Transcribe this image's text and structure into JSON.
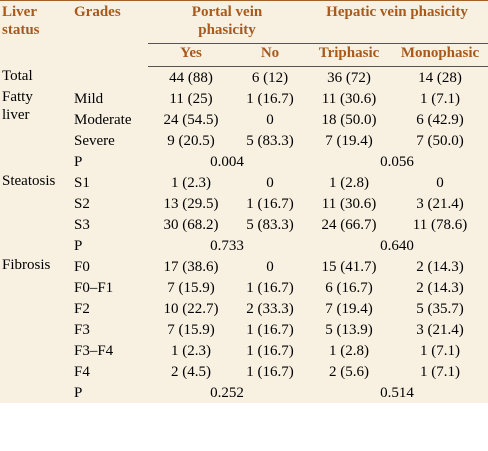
{
  "header": {
    "status": "Liver status",
    "grades": "Grades",
    "portal": "Portal vein phasicity",
    "hepatic": "Hepatic vein phasicity",
    "yes": "Yes",
    "no": "No",
    "triphasic": "Triphasic",
    "monophasic": "Monophasic"
  },
  "groups": [
    {
      "status": "Total",
      "rows": [
        {
          "cells": [
            "44 (88)",
            "6 (12)",
            "36 (72)",
            "14 (28)"
          ]
        }
      ]
    },
    {
      "status": "Fatty liver",
      "rows": [
        {
          "grade": "Mild",
          "cells": [
            "11 (25)",
            "1 (16.7)",
            "11 (30.6)",
            "1 (7.1)"
          ]
        },
        {
          "grade": "Moderate",
          "cells": [
            "24 (54.5)",
            "0",
            "18 (50.0)",
            "6 (42.9)"
          ]
        },
        {
          "grade": "Severe",
          "cells": [
            "9 (20.5)",
            "5 (83.3)",
            "7 (19.4)",
            "7 (50.0)"
          ]
        },
        {
          "grade": "P",
          "p": [
            "0.004",
            "0.056"
          ]
        }
      ]
    },
    {
      "status": "Steatosis",
      "rows": [
        {
          "grade": "S1",
          "cells": [
            "1 (2.3)",
            "0",
            "1 (2.8)",
            "0"
          ]
        },
        {
          "grade": "S2",
          "cells": [
            "13 (29.5)",
            "1 (16.7)",
            "11 (30.6)",
            "3 (21.4)"
          ]
        },
        {
          "grade": "S3",
          "cells": [
            "30 (68.2)",
            "5 (83.3)",
            "24 (66.7)",
            "11 (78.6)"
          ]
        },
        {
          "grade": "P",
          "p": [
            "0.733",
            "0.640"
          ]
        }
      ]
    },
    {
      "status": "Fibrosis",
      "rows": [
        {
          "grade": "F0",
          "cells": [
            "17 (38.6)",
            "0",
            "15 (41.7)",
            "2 (14.3)"
          ]
        },
        {
          "grade": "F0–F1",
          "cells": [
            "7 (15.9)",
            "1 (16.7)",
            "6 (16.7)",
            "2 (14.3)"
          ]
        },
        {
          "grade": "F2",
          "cells": [
            "10 (22.7)",
            "2 (33.3)",
            "7 (19.4)",
            "5 (35.7)"
          ]
        },
        {
          "grade": "F3",
          "cells": [
            "7 (15.9)",
            "1 (16.7)",
            "5 (13.9)",
            "3 (21.4)"
          ]
        },
        {
          "grade": "F3–F4",
          "cells": [
            "1 (2.3)",
            "1 (16.7)",
            "1 (2.8)",
            "1 (7.1)"
          ]
        },
        {
          "grade": "F4",
          "cells": [
            "2 (4.5)",
            "1 (16.7)",
            "2 (5.6)",
            "1 (7.1)"
          ]
        },
        {
          "grade": "P",
          "p": [
            "0.252",
            "0.514"
          ]
        }
      ]
    }
  ]
}
